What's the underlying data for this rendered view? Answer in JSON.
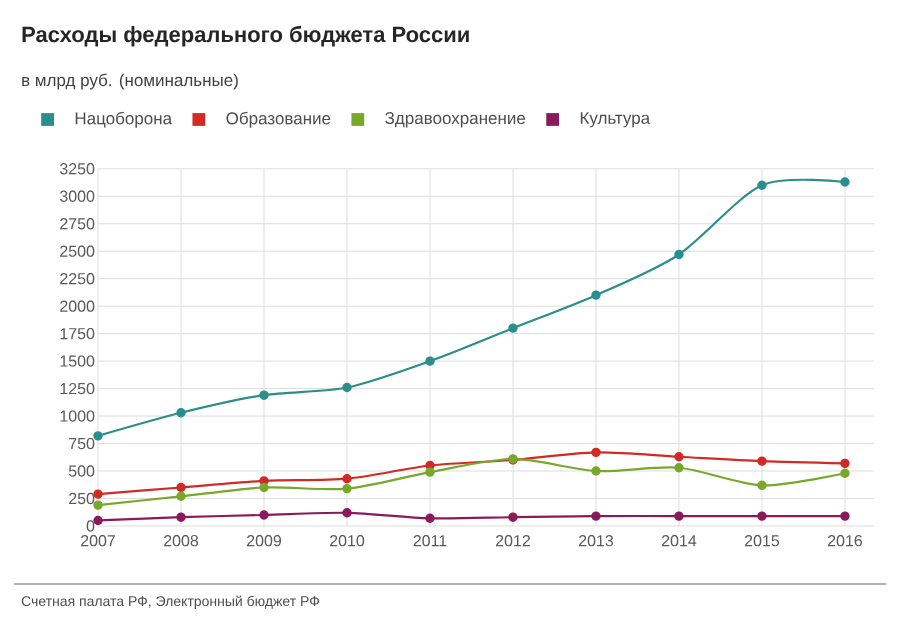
{
  "chart_data": {
    "type": "line",
    "title": "Расходы федерального бюджета России",
    "subtitle": "в млрд руб. (номинальные)",
    "annotations": [
      "Счетная палата РФ, Электронный бюджет РФ"
    ],
    "x": [
      2007,
      2008,
      2009,
      2010,
      2011,
      2012,
      2013,
      2014,
      2015,
      2016
    ],
    "xlim": [
      2007,
      2016.35
    ],
    "xticks": [
      2007,
      2008,
      2009,
      2010,
      2011,
      2012,
      2013,
      2014,
      2015,
      2016
    ],
    "ylim": [
      0,
      3250
    ],
    "yticks": [
      0,
      250,
      500,
      750,
      1000,
      1250,
      1500,
      1750,
      2000,
      2250,
      2500,
      2750,
      3000,
      3250
    ],
    "grid": true,
    "legend": "top",
    "marker": "circle",
    "line_style": "solid",
    "series": [
      {
        "name": "Нацоборона",
        "color": "#2a8f8c",
        "values": [
          820,
          1030,
          1190,
          1260,
          1500,
          1800,
          2100,
          2470,
          3100,
          3130
        ]
      },
      {
        "name": "Образование",
        "color": "#d22a25",
        "values": [
          290,
          350,
          410,
          430,
          550,
          600,
          670,
          630,
          590,
          570
        ]
      },
      {
        "name": "Здравоохранение",
        "color": "#77a82a",
        "values": [
          190,
          270,
          350,
          340,
          490,
          610,
          500,
          530,
          370,
          480
        ]
      },
      {
        "name": "Культура",
        "color": "#8b1a5c",
        "values": [
          50,
          80,
          100,
          120,
          70,
          80,
          90,
          90,
          90,
          90
        ]
      }
    ]
  }
}
